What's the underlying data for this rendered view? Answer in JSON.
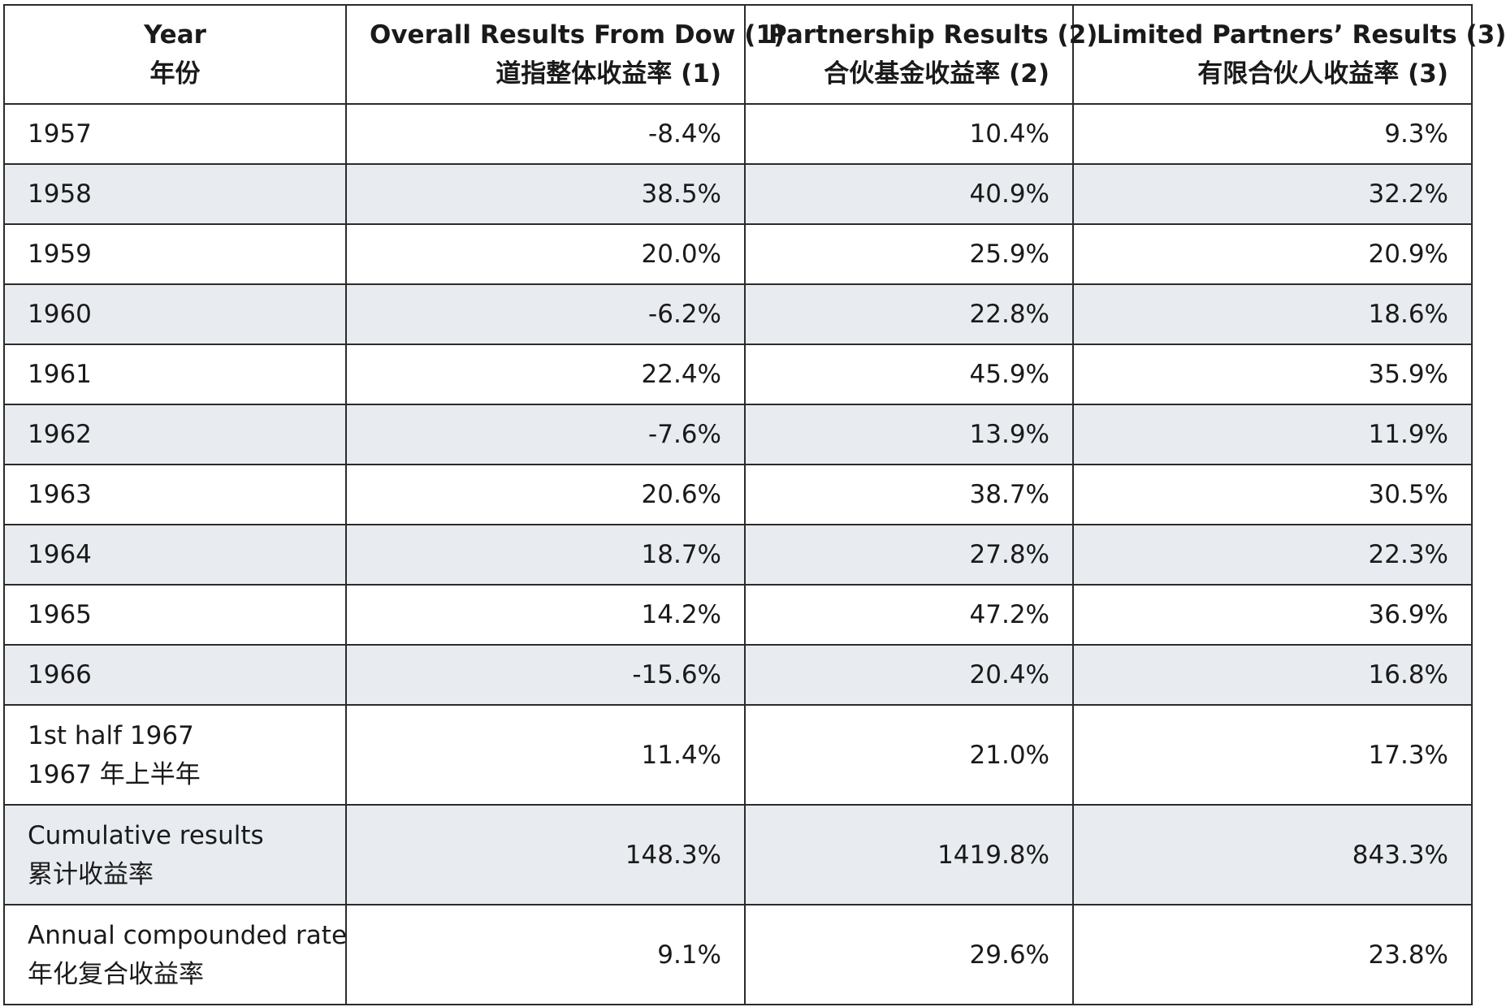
{
  "headers": [
    {
      "en": "Year",
      "zh": "年份"
    },
    {
      "en": "Overall Results From Dow (1)",
      "zh": "道指整体收益率 (1)"
    },
    {
      "en": "Partnership Results (2)",
      "zh": "合伙基金收益率 (2)"
    },
    {
      "en": "Limited Partners’ Results (3)",
      "zh": "有限合伙人收益率 (3)"
    }
  ],
  "rows": [
    {
      "year": "1957",
      "dow": "-8.4%",
      "partnership": "10.4%",
      "limited": "9.3%"
    },
    {
      "year": "1958",
      "dow": "38.5%",
      "partnership": "40.9%",
      "limited": "32.2%"
    },
    {
      "year": "1959",
      "dow": "20.0%",
      "partnership": "25.9%",
      "limited": "20.9%"
    },
    {
      "year": "1960",
      "dow": "-6.2%",
      "partnership": "22.8%",
      "limited": "18.6%"
    },
    {
      "year": "1961",
      "dow": "22.4%",
      "partnership": "45.9%",
      "limited": "35.9%"
    },
    {
      "year": "1962",
      "dow": "-7.6%",
      "partnership": "13.9%",
      "limited": "11.9%"
    },
    {
      "year": "1963",
      "dow": "20.6%",
      "partnership": "38.7%",
      "limited": "30.5%"
    },
    {
      "year": "1964",
      "dow": "18.7%",
      "partnership": "27.8%",
      "limited": "22.3%"
    },
    {
      "year": "1965",
      "dow": "14.2%",
      "partnership": "47.2%",
      "limited": "36.9%"
    },
    {
      "year": "1966",
      "dow": "-15.6%",
      "partnership": "20.4%",
      "limited": "16.8%"
    }
  ],
  "summary_rows": [
    {
      "label_en": "1st half 1967",
      "label_zh": "1967 年上半年",
      "dow": "11.4%",
      "partnership": "21.0%",
      "limited": "17.3%"
    },
    {
      "label_en": "Cumulative results",
      "label_zh": "累计收益率",
      "dow": "148.3%",
      "partnership": "1419.8%",
      "limited": "843.3%"
    },
    {
      "label_en": "Annual compounded rate",
      "label_zh": "年化复合收益率",
      "dow": "9.1%",
      "partnership": "29.6%",
      "limited": "23.8%"
    }
  ],
  "colors": {
    "shaded_row": "#e8ecf0",
    "border": "#2b2b2b"
  }
}
